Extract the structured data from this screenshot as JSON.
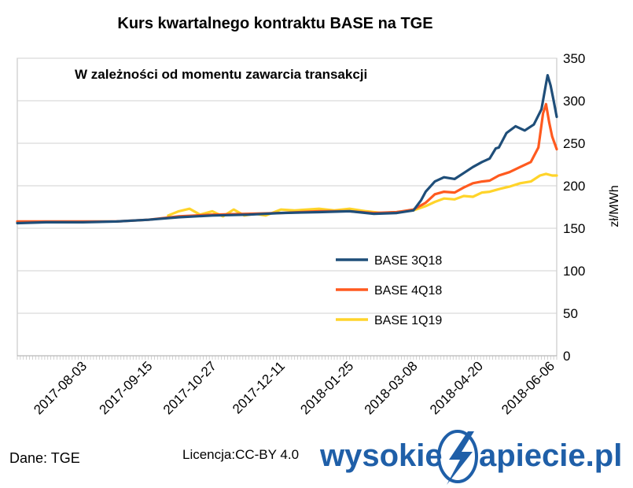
{
  "chart_data": {
    "type": "line",
    "title": "Kurs kwartalnego kontraktu BASE na TGE",
    "subtitle": "W zależności od momentu zawarcia transakcji",
    "ylabel": "zł/MWh",
    "ylim": [
      0,
      350
    ],
    "yticks": [
      0,
      50,
      100,
      150,
      200,
      250,
      300,
      350
    ],
    "xlim": [
      "2017-06-21",
      "2018-06-10"
    ],
    "xtick_labels": [
      "2017-08-03",
      "2017-09-15",
      "2017-10-27",
      "2017-12-11",
      "2018-01-25",
      "2018-03-08",
      "2018-04-20",
      "2018-06-06"
    ],
    "grid": "horizontal",
    "legend_position": "bottom-right",
    "series": [
      {
        "name": "BASE 3Q18",
        "color": "#1f4e79",
        "points": [
          [
            "2017-06-21",
            156
          ],
          [
            "2017-07-10",
            157
          ],
          [
            "2017-08-03",
            157
          ],
          [
            "2017-08-25",
            158
          ],
          [
            "2017-09-15",
            160
          ],
          [
            "2017-10-05",
            163
          ],
          [
            "2017-10-27",
            165
          ],
          [
            "2017-11-20",
            166
          ],
          [
            "2017-12-11",
            168
          ],
          [
            "2018-01-05",
            169
          ],
          [
            "2018-01-25",
            170
          ],
          [
            "2018-02-10",
            167
          ],
          [
            "2018-02-25",
            168
          ],
          [
            "2018-03-08",
            171
          ],
          [
            "2018-03-13",
            183
          ],
          [
            "2018-03-16",
            193
          ],
          [
            "2018-03-22",
            205
          ],
          [
            "2018-03-28",
            210
          ],
          [
            "2018-04-04",
            208
          ],
          [
            "2018-04-10",
            215
          ],
          [
            "2018-04-16",
            222
          ],
          [
            "2018-04-22",
            228
          ],
          [
            "2018-04-27",
            232
          ],
          [
            "2018-05-01",
            244
          ],
          [
            "2018-05-03",
            245
          ],
          [
            "2018-05-08",
            262
          ],
          [
            "2018-05-14",
            270
          ],
          [
            "2018-05-20",
            265
          ],
          [
            "2018-05-26",
            272
          ],
          [
            "2018-05-31",
            290
          ],
          [
            "2018-06-03",
            320
          ],
          [
            "2018-06-04",
            330
          ],
          [
            "2018-06-06",
            318
          ],
          [
            "2018-06-08",
            300
          ],
          [
            "2018-06-10",
            281
          ]
        ]
      },
      {
        "name": "BASE 4Q18",
        "color": "#ff5a1f",
        "points": [
          [
            "2017-06-21",
            158
          ],
          [
            "2017-07-10",
            158
          ],
          [
            "2017-08-03",
            158
          ],
          [
            "2017-08-25",
            158
          ],
          [
            "2017-09-15",
            160
          ],
          [
            "2017-10-05",
            164
          ],
          [
            "2017-10-27",
            166
          ],
          [
            "2017-11-20",
            167
          ],
          [
            "2017-12-11",
            168
          ],
          [
            "2018-01-05",
            170
          ],
          [
            "2018-01-25",
            170
          ],
          [
            "2018-02-10",
            168
          ],
          [
            "2018-02-25",
            169
          ],
          [
            "2018-03-08",
            172
          ],
          [
            "2018-03-16",
            180
          ],
          [
            "2018-03-22",
            190
          ],
          [
            "2018-03-28",
            193
          ],
          [
            "2018-04-04",
            192
          ],
          [
            "2018-04-10",
            198
          ],
          [
            "2018-04-16",
            203
          ],
          [
            "2018-04-22",
            205
          ],
          [
            "2018-04-27",
            206
          ],
          [
            "2018-05-03",
            212
          ],
          [
            "2018-05-10",
            216
          ],
          [
            "2018-05-17",
            222
          ],
          [
            "2018-05-24",
            228
          ],
          [
            "2018-05-29",
            245
          ],
          [
            "2018-06-01",
            285
          ],
          [
            "2018-06-03",
            296
          ],
          [
            "2018-06-05",
            275
          ],
          [
            "2018-06-07",
            258
          ],
          [
            "2018-06-10",
            243
          ]
        ]
      },
      {
        "name": "BASE 1Q19",
        "color": "#ffd42a",
        "points": [
          [
            "2017-09-28",
            165
          ],
          [
            "2017-10-05",
            170
          ],
          [
            "2017-10-12",
            173
          ],
          [
            "2017-10-19",
            166
          ],
          [
            "2017-10-27",
            170
          ],
          [
            "2017-11-03",
            164
          ],
          [
            "2017-11-10",
            172
          ],
          [
            "2017-11-17",
            165
          ],
          [
            "2017-11-24",
            167
          ],
          [
            "2017-12-01",
            165
          ],
          [
            "2017-12-11",
            172
          ],
          [
            "2017-12-20",
            171
          ],
          [
            "2018-01-05",
            173
          ],
          [
            "2018-01-15",
            171
          ],
          [
            "2018-01-25",
            173
          ],
          [
            "2018-02-05",
            170
          ],
          [
            "2018-02-15",
            168
          ],
          [
            "2018-02-25",
            169
          ],
          [
            "2018-03-08",
            171
          ],
          [
            "2018-03-16",
            176
          ],
          [
            "2018-03-22",
            181
          ],
          [
            "2018-03-28",
            185
          ],
          [
            "2018-04-04",
            184
          ],
          [
            "2018-04-10",
            188
          ],
          [
            "2018-04-16",
            187
          ],
          [
            "2018-04-22",
            192
          ],
          [
            "2018-04-27",
            193
          ],
          [
            "2018-05-03",
            196
          ],
          [
            "2018-05-10",
            199
          ],
          [
            "2018-05-17",
            203
          ],
          [
            "2018-05-24",
            205
          ],
          [
            "2018-05-30",
            212
          ],
          [
            "2018-06-03",
            214
          ],
          [
            "2018-06-07",
            212
          ],
          [
            "2018-06-10",
            212
          ]
        ]
      }
    ]
  },
  "footer": {
    "source": "Dane: TGE",
    "license": "Licencja:CC-BY 4.0",
    "logo_left": "wysokie",
    "logo_right": "apiecie.pl"
  }
}
